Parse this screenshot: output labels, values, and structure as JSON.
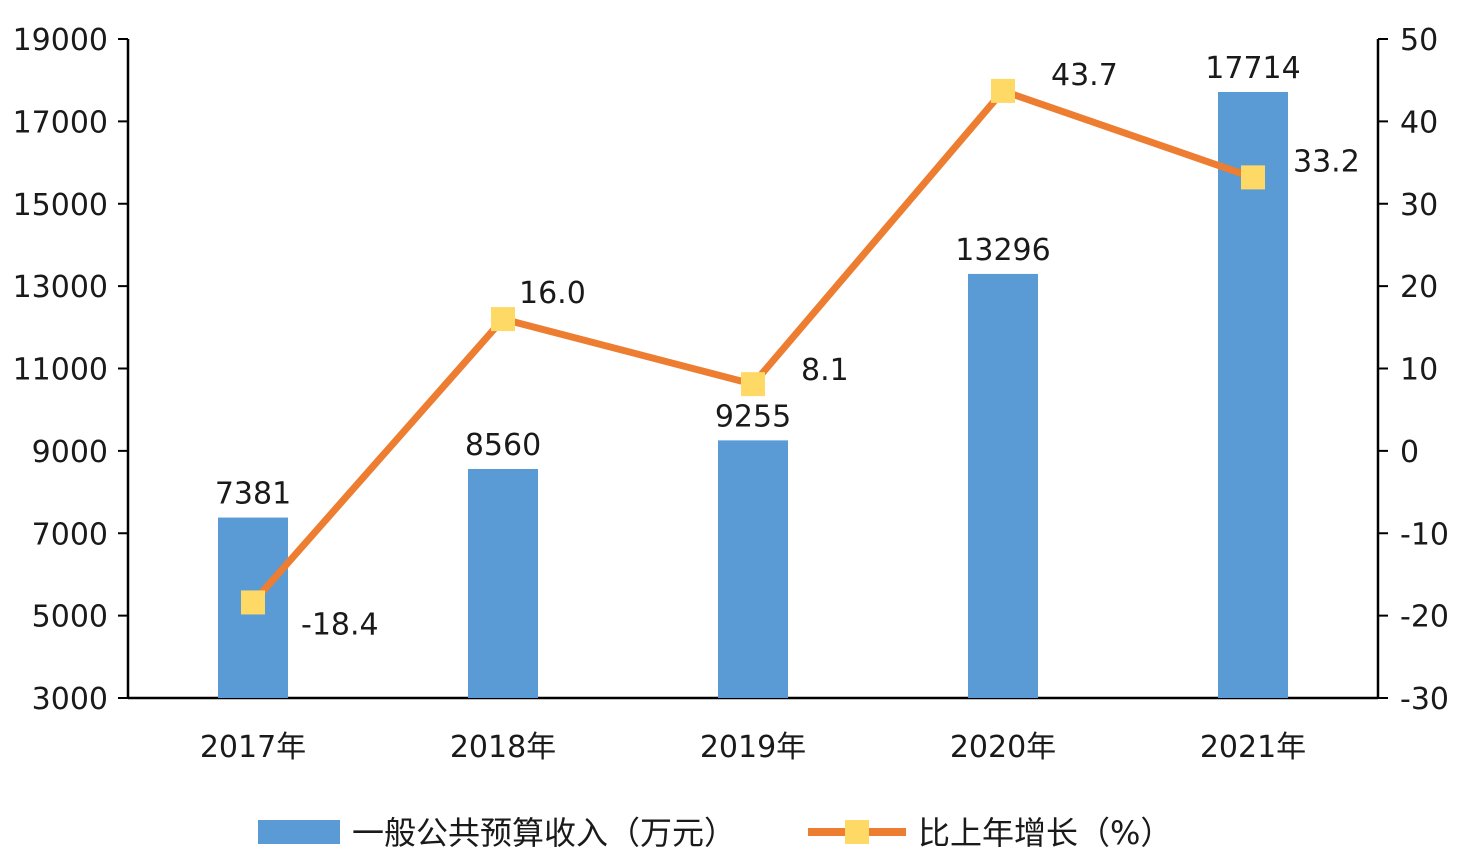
{
  "chart_data": {
    "type": "bar",
    "categories": [
      "2017年",
      "2018年",
      "2019年",
      "2020年",
      "2021年"
    ],
    "series": [
      {
        "name": "一般公共预算收入（万元）",
        "type": "bar",
        "axis": "left",
        "color": "#5B9BD5",
        "values": [
          7381,
          8560,
          9255,
          13296,
          17714
        ],
        "labels": [
          "7381",
          "8560",
          "9255",
          "13296",
          "17714"
        ]
      },
      {
        "name": "比上年增长（%）",
        "type": "line",
        "axis": "right",
        "color": "#ED7D31",
        "marker_color": "#FFD966",
        "values": [
          -18.4,
          16.0,
          8.1,
          43.7,
          33.2
        ],
        "labels": [
          "-18.4",
          "16.0",
          "8.1",
          "43.7",
          "33.2"
        ]
      }
    ],
    "y_left": {
      "min": 3000,
      "max": 19000,
      "ticks": [
        3000,
        5000,
        7000,
        9000,
        11000,
        13000,
        15000,
        17000,
        19000
      ]
    },
    "y_right": {
      "min": -30,
      "max": 50,
      "ticks": [
        -30,
        -20,
        -10,
        0,
        10,
        20,
        30,
        40,
        50
      ]
    },
    "grid": false,
    "legend_position": "bottom"
  }
}
